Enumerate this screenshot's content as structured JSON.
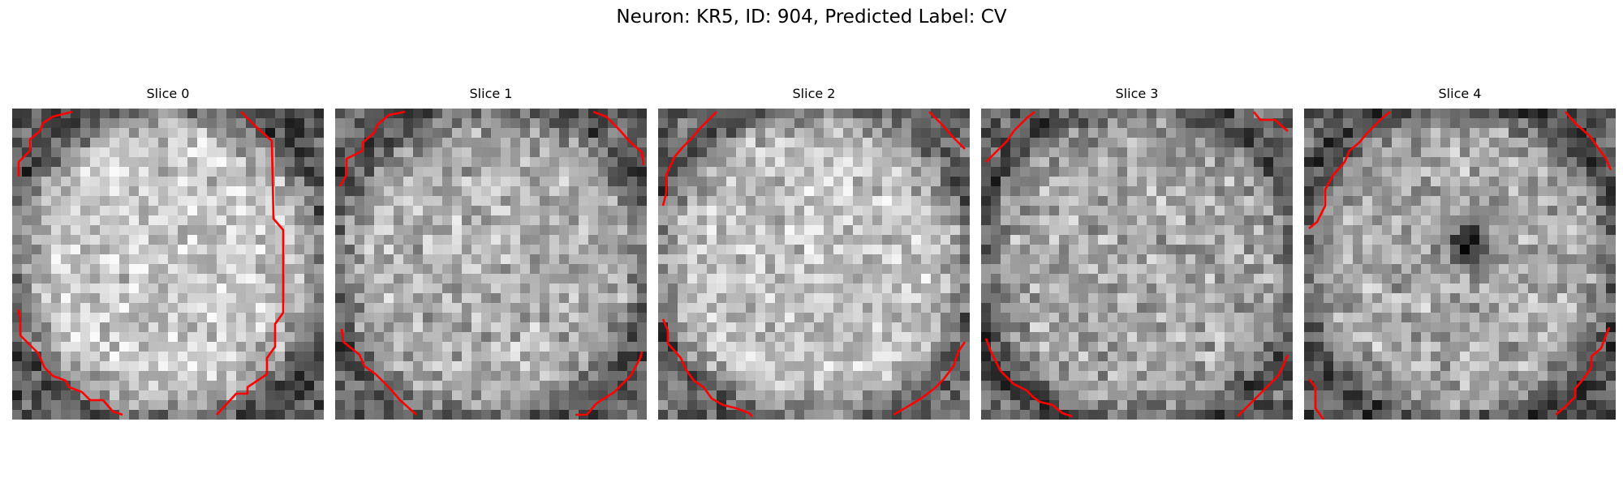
{
  "figure": {
    "title": "Neuron: KR5, ID: 904, Predicted Label: CV"
  },
  "panels": [
    {
      "title": "Slice 0",
      "seed": 11,
      "center_tone": 200,
      "edge_tone": 90,
      "center_blob": false
    },
    {
      "title": "Slice 1",
      "seed": 23,
      "center_tone": 175,
      "edge_tone": 105,
      "center_blob": false
    },
    {
      "title": "Slice 2",
      "seed": 37,
      "center_tone": 195,
      "edge_tone": 110,
      "center_blob": false
    },
    {
      "title": "Slice 3",
      "seed": 41,
      "center_tone": 165,
      "edge_tone": 105,
      "center_blob": false
    },
    {
      "title": "Slice 4",
      "seed": 53,
      "center_tone": 170,
      "edge_tone": 95,
      "center_blob": true
    }
  ],
  "colors": {
    "contour": "#ff0000",
    "background": "#ffffff"
  }
}
